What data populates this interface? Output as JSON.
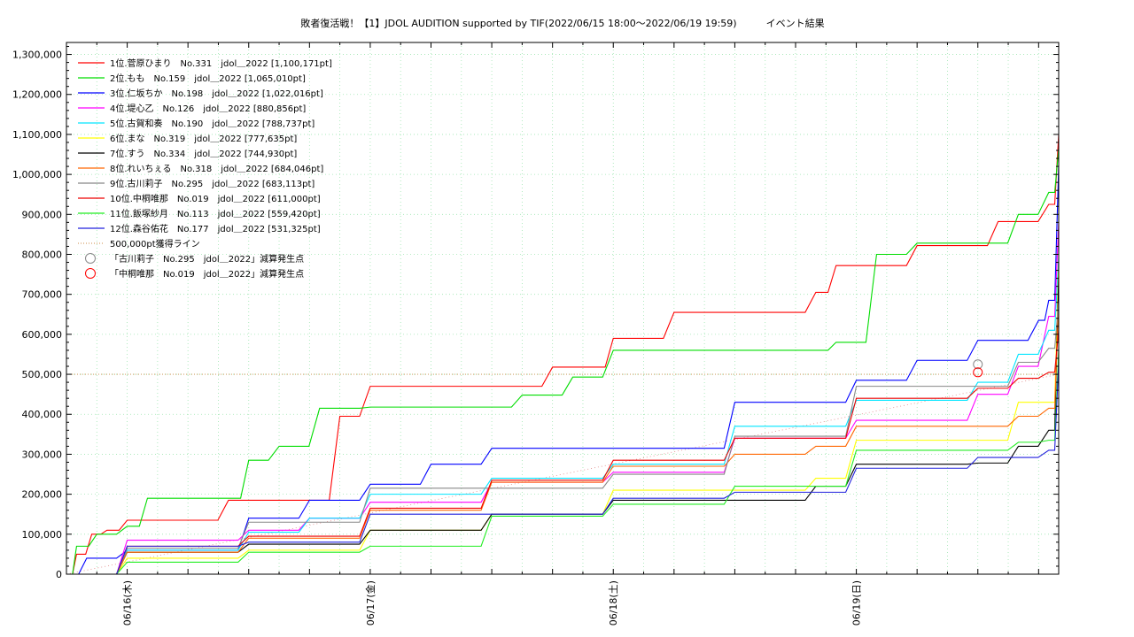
{
  "chart_data": {
    "type": "line",
    "title": "敗者復活戦！【1】JDOL AUDITION supported by TIF(2022/06/15 18:00～2022/06/19 19:59)　　　イベント結果",
    "xlabel": "",
    "ylabel": "",
    "x_range": [
      "2022-06-15 18:00",
      "2022-06-19 19:59"
    ],
    "ylim": [
      0,
      1330000
    ],
    "yticks": [
      0,
      100000,
      200000,
      300000,
      400000,
      500000,
      600000,
      700000,
      800000,
      900000,
      1000000,
      1100000,
      1200000,
      1300000
    ],
    "ytick_labels": [
      "0",
      "100,000",
      "200,000",
      "300,000",
      "400,000",
      "500,000",
      "600,000",
      "700,000",
      "800,000",
      "900,000",
      "1,000,000",
      "1,100,000",
      "1,200,000",
      "1,300,000"
    ],
    "xticks": [
      "2022-06-16",
      "2022-06-17",
      "2022-06-18",
      "2022-06-19"
    ],
    "xtick_labels": [
      "06/16(木)",
      "06/17(金)",
      "06/18(土)",
      "06/19(日)"
    ],
    "grid": true,
    "legend_position": "top-left",
    "series": [
      {
        "name": "1位.菅原ひまり　No.331　jdol＿2022 [1,100,171pt]",
        "color": "#ff0000",
        "x": [
          "2022-06-15 18:00",
          "2022-06-15 19:00",
          "2022-06-15 20:30",
          "2022-06-15 22:00",
          "2022-06-16 00:00",
          "2022-06-16 06:00",
          "2022-06-16 10:00",
          "2022-06-16 18:00",
          "2022-06-16 21:00",
          "2022-06-17 00:00",
          "2022-06-17 12:00",
          "2022-06-17 18:00",
          "2022-06-17 22:00",
          "2022-06-18 00:00",
          "2022-06-18 06:00",
          "2022-06-18 12:00",
          "2022-06-18 20:00",
          "2022-06-18 22:00",
          "2022-06-19 06:00",
          "2022-06-19 14:00",
          "2022-06-19 19:00",
          "2022-06-19 19:59"
        ],
        "values": [
          0,
          50000,
          100000,
          110000,
          135000,
          135000,
          185000,
          185000,
          395000,
          470000,
          470000,
          518000,
          518000,
          590000,
          655000,
          655000,
          705000,
          772000,
          822000,
          882000,
          925000,
          1100171
        ]
      },
      {
        "name": "2位.もも　No.159　jdol＿2022 [1,065,010pt]",
        "color": "#00dd00",
        "x": [
          "2022-06-15 18:00",
          "2022-06-15 19:00",
          "2022-06-15 21:00",
          "2022-06-16 00:00",
          "2022-06-16 02:00",
          "2022-06-16 10:00",
          "2022-06-16 12:00",
          "2022-06-16 15:00",
          "2022-06-16 19:00",
          "2022-06-17 00:00",
          "2022-06-17 12:00",
          "2022-06-17 15:00",
          "2022-06-17 20:00",
          "2022-06-18 00:00",
          "2022-06-18 20:00",
          "2022-06-18 22:00",
          "2022-06-19 02:00",
          "2022-06-19 06:00",
          "2022-06-19 12:00",
          "2022-06-19 16:00",
          "2022-06-19 19:00",
          "2022-06-19 19:59"
        ],
        "values": [
          0,
          70000,
          100000,
          120000,
          190000,
          190000,
          285000,
          320000,
          415000,
          418000,
          418000,
          448000,
          493000,
          560000,
          560000,
          580000,
          800000,
          828000,
          828000,
          900000,
          955000,
          1065010
        ]
      },
      {
        "name": "3位.仁坂ちか　No.198　jdol＿2022 [1,022,016pt]",
        "color": "#0000ff",
        "x": [
          "2022-06-15 18:00",
          "2022-06-15 20:00",
          "2022-06-16 00:00",
          "2022-06-16 12:00",
          "2022-06-16 18:00",
          "2022-06-17 00:00",
          "2022-06-17 06:00",
          "2022-06-17 12:00",
          "2022-06-18 00:00",
          "2022-06-18 12:00",
          "2022-06-18 16:00",
          "2022-06-19 00:00",
          "2022-06-19 06:00",
          "2022-06-19 12:00",
          "2022-06-19 18:00",
          "2022-06-19 19:00",
          "2022-06-19 19:59"
        ],
        "values": [
          0,
          40000,
          60000,
          140000,
          185000,
          225000,
          275000,
          315000,
          315000,
          430000,
          430000,
          485000,
          535000,
          585000,
          635000,
          685000,
          1022016
        ]
      },
      {
        "name": "4位.堤心乙　No.126　jdol＿2022 [880,856pt]",
        "color": "#ff00ff",
        "x": [
          "2022-06-15 18:00",
          "2022-06-16 00:00",
          "2022-06-16 12:00",
          "2022-06-16 18:00",
          "2022-06-17 00:00",
          "2022-06-17 12:00",
          "2022-06-18 00:00",
          "2022-06-18 12:00",
          "2022-06-19 00:00",
          "2022-06-19 12:00",
          "2022-06-19 16:00",
          "2022-06-19 19:00",
          "2022-06-19 19:59"
        ],
        "values": [
          0,
          85000,
          110000,
          140000,
          180000,
          230000,
          255000,
          340000,
          385000,
          450000,
          520000,
          645000,
          880856
        ]
      },
      {
        "name": "5位.古賀和奏　No.190　jdol＿2022 [788,737pt]",
        "color": "#00e5ff",
        "x": [
          "2022-06-15 18:00",
          "2022-06-16 00:00",
          "2022-06-16 12:00",
          "2022-06-16 18:00",
          "2022-06-17 00:00",
          "2022-06-17 12:00",
          "2022-06-18 00:00",
          "2022-06-18 12:00",
          "2022-06-19 00:00",
          "2022-06-19 12:00",
          "2022-06-19 16:00",
          "2022-06-19 19:00",
          "2022-06-19 19:59"
        ],
        "values": [
          0,
          60000,
          105000,
          140000,
          200000,
          240000,
          275000,
          370000,
          435000,
          480000,
          550000,
          610000,
          788737
        ]
      },
      {
        "name": "6位.まな　No.319　jdol＿2022 [777,635pt]",
        "color": "#ffff00",
        "x": [
          "2022-06-15 18:00",
          "2022-06-16 00:00",
          "2022-06-16 12:00",
          "2022-06-17 00:00",
          "2022-06-17 12:00",
          "2022-06-18 00:00",
          "2022-06-18 12:00",
          "2022-06-18 20:00",
          "2022-06-19 00:00",
          "2022-06-19 12:00",
          "2022-06-19 16:00",
          "2022-06-19 19:00",
          "2022-06-19 19:59"
        ],
        "values": [
          0,
          40000,
          60000,
          110000,
          150000,
          210000,
          210000,
          240000,
          335000,
          335000,
          430000,
          430000,
          777635
        ]
      },
      {
        "name": "7位.すう　No.334　jdol＿2022 [744,930pt]",
        "color": "#000000",
        "x": [
          "2022-06-15 18:00",
          "2022-06-16 00:00",
          "2022-06-16 12:00",
          "2022-06-17 00:00",
          "2022-06-17 12:00",
          "2022-06-18 00:00",
          "2022-06-18 12:00",
          "2022-06-18 20:00",
          "2022-06-19 00:00",
          "2022-06-19 12:00",
          "2022-06-19 16:00",
          "2022-06-19 19:00",
          "2022-06-19 19:59"
        ],
        "values": [
          0,
          55000,
          75000,
          110000,
          150000,
          185000,
          185000,
          220000,
          275000,
          278000,
          320000,
          360000,
          744930
        ]
      },
      {
        "name": "8位.れいちぇる　No.318　jdol＿2022 [684,046pt]",
        "color": "#ff6600",
        "x": [
          "2022-06-15 18:00",
          "2022-06-16 00:00",
          "2022-06-16 12:00",
          "2022-06-17 00:00",
          "2022-06-17 12:00",
          "2022-06-18 00:00",
          "2022-06-18 12:00",
          "2022-06-18 20:00",
          "2022-06-19 00:00",
          "2022-06-19 12:00",
          "2022-06-19 16:00",
          "2022-06-19 19:00",
          "2022-06-19 19:59"
        ],
        "values": [
          0,
          55000,
          90000,
          160000,
          230000,
          270000,
          300000,
          320000,
          370000,
          370000,
          395000,
          415000,
          684046
        ]
      },
      {
        "name": "9位.古川莉子　No.295　jdol＿2022 [683,113pt]",
        "color": "#888888",
        "x": [
          "2022-06-15 18:00",
          "2022-06-16 00:00",
          "2022-06-16 12:00",
          "2022-06-17 00:00",
          "2022-06-17 12:00",
          "2022-06-18 00:00",
          "2022-06-18 12:00",
          "2022-06-19 00:00",
          "2022-06-19 12:00",
          "2022-06-19 16:00",
          "2022-06-19 19:00",
          "2022-06-19 19:59"
        ],
        "values": [
          0,
          65000,
          130000,
          215000,
          215000,
          250000,
          345000,
          470000,
          470000,
          530000,
          565000,
          683113
        ]
      },
      {
        "name": "10位.中桐唯那　No.019　jdol＿2022 [611,000pt]",
        "color": "#ee0000",
        "x": [
          "2022-06-15 18:00",
          "2022-06-16 00:00",
          "2022-06-16 12:00",
          "2022-06-17 00:00",
          "2022-06-17 12:00",
          "2022-06-18 00:00",
          "2022-06-18 12:00",
          "2022-06-19 00:00",
          "2022-06-19 12:00",
          "2022-06-19 16:00",
          "2022-06-19 19:00",
          "2022-06-19 19:59"
        ],
        "values": [
          0,
          70000,
          95000,
          165000,
          235000,
          285000,
          340000,
          440000,
          465000,
          490000,
          505000,
          611000
        ]
      },
      {
        "name": "11位.飯塚紗月　No.113　jdol＿2022 [559,420pt]",
        "color": "#22ee22",
        "x": [
          "2022-06-15 18:00",
          "2022-06-16 00:00",
          "2022-06-16 12:00",
          "2022-06-17 00:00",
          "2022-06-17 12:00",
          "2022-06-18 00:00",
          "2022-06-18 12:00",
          "2022-06-19 00:00",
          "2022-06-19 12:00",
          "2022-06-19 16:00",
          "2022-06-19 19:00",
          "2022-06-19 19:59"
        ],
        "values": [
          0,
          30000,
          55000,
          70000,
          145000,
          175000,
          220000,
          310000,
          310000,
          330000,
          335000,
          559420
        ]
      },
      {
        "name": "12位.森谷佑花　No.177　jdol＿2022 [531,325pt]",
        "color": "#2222dd",
        "x": [
          "2022-06-15 18:00",
          "2022-06-16 00:00",
          "2022-06-16 12:00",
          "2022-06-17 00:00",
          "2022-06-17 12:00",
          "2022-06-18 00:00",
          "2022-06-18 12:00",
          "2022-06-19 00:00",
          "2022-06-19 12:00",
          "2022-06-19 16:00",
          "2022-06-19 19:00",
          "2022-06-19 19:59"
        ],
        "values": [
          0,
          70000,
          80000,
          150000,
          150000,
          190000,
          205000,
          265000,
          292000,
          292000,
          310000,
          531325
        ]
      }
    ],
    "reference_line": {
      "name": "500,000pt獲得ライン",
      "value": 500000,
      "color": "#cc8844"
    },
    "markers": [
      {
        "name": "「古川莉子　No.295　jdol＿2022」減算発生点",
        "color": "#888888",
        "x": "2022-06-19 12:00",
        "value": 525000
      },
      {
        "name": "「中桐唯那　No.019　jdol＿2022」減算発生点",
        "color": "#ff0000",
        "x": "2022-06-19 12:00",
        "value": 505000
      }
    ]
  }
}
